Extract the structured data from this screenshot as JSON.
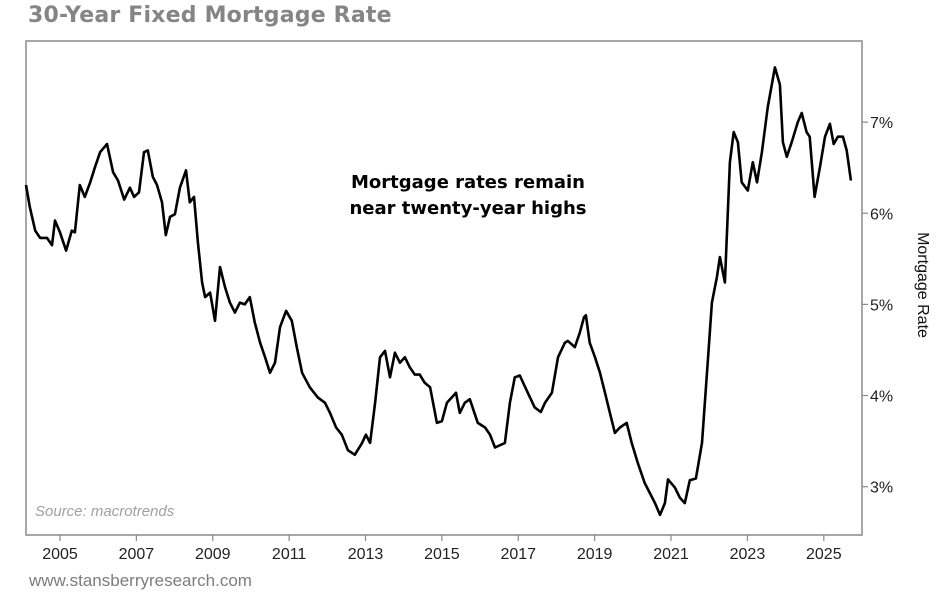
{
  "chart_data": {
    "type": "line",
    "title": "30-Year Fixed Mortgage Rate",
    "ylabel": "Mortgage Rate",
    "xlabel": "",
    "annotation": [
      "Mortgage rates remain",
      "near twenty-year highs"
    ],
    "source": "Source: macrotrends",
    "xlim": [
      2004.11,
      2026.0
    ],
    "ylim": [
      2.47,
      7.89
    ],
    "x_ticks": [
      2005,
      2007,
      2009,
      2011,
      2013,
      2015,
      2017,
      2019,
      2021,
      2023,
      2025
    ],
    "x_tick_labels": [
      "2005",
      "2007",
      "2009",
      "2011",
      "2013",
      "2015",
      "2017",
      "2019",
      "2021",
      "2023",
      "2025"
    ],
    "y_ticks": [
      3,
      4,
      5,
      6,
      7
    ],
    "y_tick_labels": [
      "3%",
      "4%",
      "5%",
      "6%",
      "7%"
    ],
    "y_axis_side": "right",
    "grid": false,
    "line_color": "#000000",
    "series": [
      {
        "name": "30-Year Fixed Mortgage Rate",
        "points": [
          [
            2004.11,
            6.31
          ],
          [
            2004.21,
            6.07
          ],
          [
            2004.35,
            5.81
          ],
          [
            2004.48,
            5.73
          ],
          [
            2004.66,
            5.73
          ],
          [
            2004.79,
            5.65
          ],
          [
            2004.87,
            5.92
          ],
          [
            2005.0,
            5.79
          ],
          [
            2005.16,
            5.59
          ],
          [
            2005.31,
            5.81
          ],
          [
            2005.39,
            5.79
          ],
          [
            2005.52,
            6.31
          ],
          [
            2005.65,
            6.18
          ],
          [
            2005.79,
            6.34
          ],
          [
            2005.92,
            6.51
          ],
          [
            2006.05,
            6.67
          ],
          [
            2006.23,
            6.76
          ],
          [
            2006.39,
            6.45
          ],
          [
            2006.52,
            6.36
          ],
          [
            2006.68,
            6.15
          ],
          [
            2006.83,
            6.28
          ],
          [
            2006.94,
            6.18
          ],
          [
            2007.07,
            6.23
          ],
          [
            2007.2,
            6.67
          ],
          [
            2007.3,
            6.69
          ],
          [
            2007.43,
            6.4
          ],
          [
            2007.54,
            6.31
          ],
          [
            2007.67,
            6.12
          ],
          [
            2007.77,
            5.76
          ],
          [
            2007.88,
            5.96
          ],
          [
            2008.01,
            5.99
          ],
          [
            2008.14,
            6.28
          ],
          [
            2008.3,
            6.47
          ],
          [
            2008.4,
            6.12
          ],
          [
            2008.51,
            6.18
          ],
          [
            2008.61,
            5.68
          ],
          [
            2008.72,
            5.24
          ],
          [
            2008.8,
            5.08
          ],
          [
            2008.93,
            5.13
          ],
          [
            2009.06,
            4.82
          ],
          [
            2009.19,
            5.41
          ],
          [
            2009.32,
            5.19
          ],
          [
            2009.45,
            5.02
          ],
          [
            2009.58,
            4.91
          ],
          [
            2009.71,
            5.02
          ],
          [
            2009.84,
            5.0
          ],
          [
            2009.97,
            5.08
          ],
          [
            2010.1,
            4.8
          ],
          [
            2010.24,
            4.58
          ],
          [
            2010.37,
            4.42
          ],
          [
            2010.5,
            4.25
          ],
          [
            2010.63,
            4.36
          ],
          [
            2010.76,
            4.75
          ],
          [
            2010.92,
            4.93
          ],
          [
            2011.07,
            4.82
          ],
          [
            2011.2,
            4.53
          ],
          [
            2011.34,
            4.25
          ],
          [
            2011.54,
            4.09
          ],
          [
            2011.75,
            3.98
          ],
          [
            2011.94,
            3.92
          ],
          [
            2012.07,
            3.81
          ],
          [
            2012.23,
            3.65
          ],
          [
            2012.38,
            3.57
          ],
          [
            2012.54,
            3.4
          ],
          [
            2012.72,
            3.35
          ],
          [
            2012.91,
            3.48
          ],
          [
            2013.01,
            3.57
          ],
          [
            2013.12,
            3.48
          ],
          [
            2013.25,
            3.92
          ],
          [
            2013.38,
            4.42
          ],
          [
            2013.51,
            4.49
          ],
          [
            2013.64,
            4.2
          ],
          [
            2013.77,
            4.47
          ],
          [
            2013.9,
            4.36
          ],
          [
            2014.03,
            4.42
          ],
          [
            2014.16,
            4.31
          ],
          [
            2014.29,
            4.23
          ],
          [
            2014.42,
            4.23
          ],
          [
            2014.55,
            4.14
          ],
          [
            2014.69,
            4.09
          ],
          [
            2014.87,
            3.7
          ],
          [
            2015.0,
            3.72
          ],
          [
            2015.13,
            3.92
          ],
          [
            2015.26,
            3.98
          ],
          [
            2015.37,
            4.03
          ],
          [
            2015.47,
            3.81
          ],
          [
            2015.6,
            3.92
          ],
          [
            2015.73,
            3.96
          ],
          [
            2015.94,
            3.7
          ],
          [
            2016.13,
            3.65
          ],
          [
            2016.26,
            3.57
          ],
          [
            2016.39,
            3.43
          ],
          [
            2016.65,
            3.48
          ],
          [
            2016.78,
            3.92
          ],
          [
            2016.91,
            4.2
          ],
          [
            2017.04,
            4.22
          ],
          [
            2017.25,
            4.03
          ],
          [
            2017.43,
            3.87
          ],
          [
            2017.59,
            3.82
          ],
          [
            2017.7,
            3.92
          ],
          [
            2017.88,
            4.03
          ],
          [
            2018.04,
            4.42
          ],
          [
            2018.22,
            4.58
          ],
          [
            2018.3,
            4.6
          ],
          [
            2018.48,
            4.53
          ],
          [
            2018.61,
            4.69
          ],
          [
            2018.72,
            4.86
          ],
          [
            2018.77,
            4.88
          ],
          [
            2018.87,
            4.58
          ],
          [
            2019.01,
            4.42
          ],
          [
            2019.14,
            4.25
          ],
          [
            2019.27,
            4.03
          ],
          [
            2019.4,
            3.81
          ],
          [
            2019.53,
            3.59
          ],
          [
            2019.66,
            3.65
          ],
          [
            2019.84,
            3.7
          ],
          [
            2019.97,
            3.48
          ],
          [
            2020.13,
            3.26
          ],
          [
            2020.31,
            3.04
          ],
          [
            2020.58,
            2.82
          ],
          [
            2020.71,
            2.69
          ],
          [
            2020.84,
            2.82
          ],
          [
            2020.92,
            3.08
          ],
          [
            2021.1,
            2.99
          ],
          [
            2021.23,
            2.88
          ],
          [
            2021.36,
            2.82
          ],
          [
            2021.49,
            3.07
          ],
          [
            2021.65,
            3.09
          ],
          [
            2021.81,
            3.48
          ],
          [
            2021.96,
            4.36
          ],
          [
            2022.07,
            5.02
          ],
          [
            2022.2,
            5.3
          ],
          [
            2022.28,
            5.52
          ],
          [
            2022.41,
            5.24
          ],
          [
            2022.54,
            6.56
          ],
          [
            2022.64,
            6.89
          ],
          [
            2022.75,
            6.78
          ],
          [
            2022.85,
            6.34
          ],
          [
            2023.01,
            6.25
          ],
          [
            2023.14,
            6.56
          ],
          [
            2023.25,
            6.34
          ],
          [
            2023.38,
            6.67
          ],
          [
            2023.53,
            7.16
          ],
          [
            2023.72,
            7.6
          ],
          [
            2023.85,
            7.41
          ],
          [
            2023.93,
            6.78
          ],
          [
            2024.03,
            6.62
          ],
          [
            2024.16,
            6.78
          ],
          [
            2024.32,
            7.0
          ],
          [
            2024.42,
            7.1
          ],
          [
            2024.55,
            6.89
          ],
          [
            2024.63,
            6.84
          ],
          [
            2024.76,
            6.18
          ],
          [
            2024.9,
            6.51
          ],
          [
            2025.03,
            6.84
          ],
          [
            2025.16,
            6.98
          ],
          [
            2025.26,
            6.76
          ],
          [
            2025.37,
            6.84
          ],
          [
            2025.5,
            6.84
          ],
          [
            2025.6,
            6.69
          ],
          [
            2025.71,
            6.36
          ]
        ]
      }
    ]
  },
  "footer": "www.stansberryresearch.com"
}
